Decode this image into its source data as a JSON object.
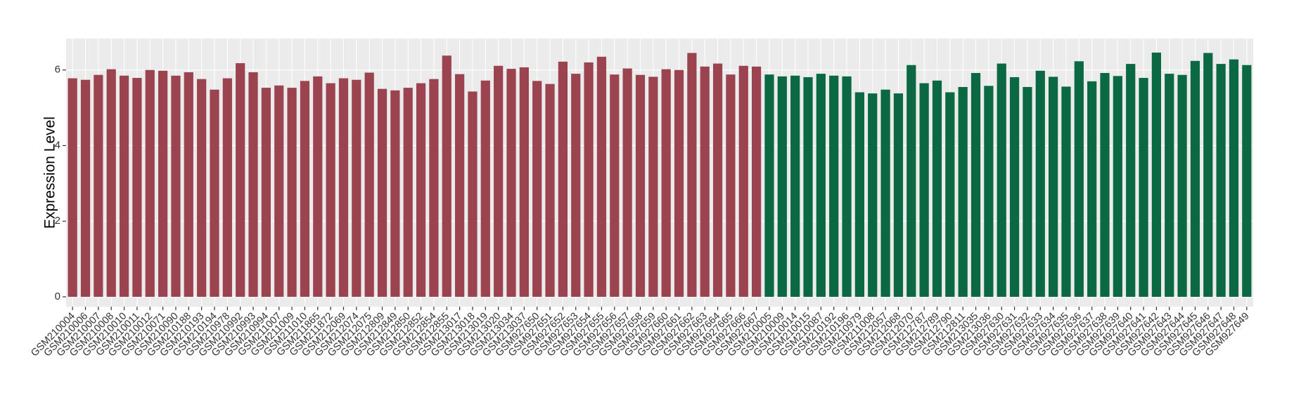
{
  "chart_data": {
    "type": "bar",
    "y_label": "Expression Level",
    "ylim": [
      -0.26,
      6.83
    ],
    "yticks": [
      0,
      2,
      4,
      6
    ],
    "grid": true,
    "series": [
      {
        "color": "#9c4350",
        "categories": [
          "GSM210004",
          "GSM210006",
          "GSM210007",
          "GSM210008",
          "GSM210010",
          "GSM210011",
          "GSM210012",
          "GSM210071",
          "GSM210090",
          "GSM210188",
          "GSM210193",
          "GSM210194",
          "GSM210978",
          "GSM210992",
          "GSM210993",
          "GSM210994",
          "GSM211007",
          "GSM211009",
          "GSM211010",
          "GSM211865",
          "GSM211872",
          "GSM212069",
          "GSM212074",
          "GSM212075",
          "GSM212809",
          "GSM212849",
          "GSM212850",
          "GSM212852",
          "GSM212854",
          "GSM212855",
          "GSM213017",
          "GSM213018",
          "GSM213019",
          "GSM213020",
          "GSM213034",
          "GSM213037",
          "GSM927650",
          "GSM927651",
          "GSM927652",
          "GSM927653",
          "GSM927654",
          "GSM927655",
          "GSM927656",
          "GSM927657",
          "GSM927658",
          "GSM927659",
          "GSM927660",
          "GSM927661",
          "GSM927662",
          "GSM927663",
          "GSM927664",
          "GSM927665",
          "GSM927666",
          "GSM927667"
        ],
        "values": [
          5.78,
          5.74,
          5.87,
          6.02,
          5.85,
          5.79,
          6.0,
          5.98,
          5.85,
          5.94,
          5.76,
          5.48,
          5.78,
          6.18,
          5.94,
          5.53,
          5.59,
          5.53,
          5.71,
          5.83,
          5.65,
          5.78,
          5.74,
          5.93,
          5.5,
          5.46,
          5.53,
          5.65,
          5.76,
          6.38,
          5.89,
          5.43,
          5.72,
          6.11,
          6.03,
          6.07,
          5.71,
          5.63,
          6.22,
          5.9,
          6.2,
          6.35,
          5.88,
          6.04,
          5.87,
          5.82,
          6.02,
          6.0,
          6.45,
          6.09,
          6.17,
          5.88,
          6.11,
          6.09
        ]
      },
      {
        "color": "#0a6843",
        "categories": [
          "GSM210005",
          "GSM210009",
          "GSM210014",
          "GSM210015",
          "GSM210087",
          "GSM210192",
          "GSM210196",
          "GSM210979",
          "GSM211008",
          "GSM212057",
          "GSM212068",
          "GSM212070",
          "GSM212787",
          "GSM212789",
          "GSM212790",
          "GSM212811",
          "GSM213035",
          "GSM213036",
          "GSM927630",
          "GSM927631",
          "GSM927632",
          "GSM927633",
          "GSM927634",
          "GSM927635",
          "GSM927636",
          "GSM927637",
          "GSM927638",
          "GSM927639",
          "GSM927640",
          "GSM927641",
          "GSM927642",
          "GSM927643",
          "GSM927644",
          "GSM927645",
          "GSM927646",
          "GSM927647",
          "GSM927648",
          "GSM927649"
        ],
        "values": [
          5.88,
          5.83,
          5.85,
          5.81,
          5.9,
          5.85,
          5.83,
          5.41,
          5.38,
          5.48,
          5.38,
          6.13,
          5.65,
          5.72,
          5.41,
          5.55,
          5.92,
          5.58,
          6.17,
          5.81,
          5.55,
          5.98,
          5.82,
          5.56,
          6.23,
          5.7,
          5.92,
          5.84,
          6.16,
          5.79,
          6.46,
          5.9,
          5.87,
          6.24,
          6.45,
          6.16,
          6.28,
          6.13
        ]
      }
    ]
  }
}
